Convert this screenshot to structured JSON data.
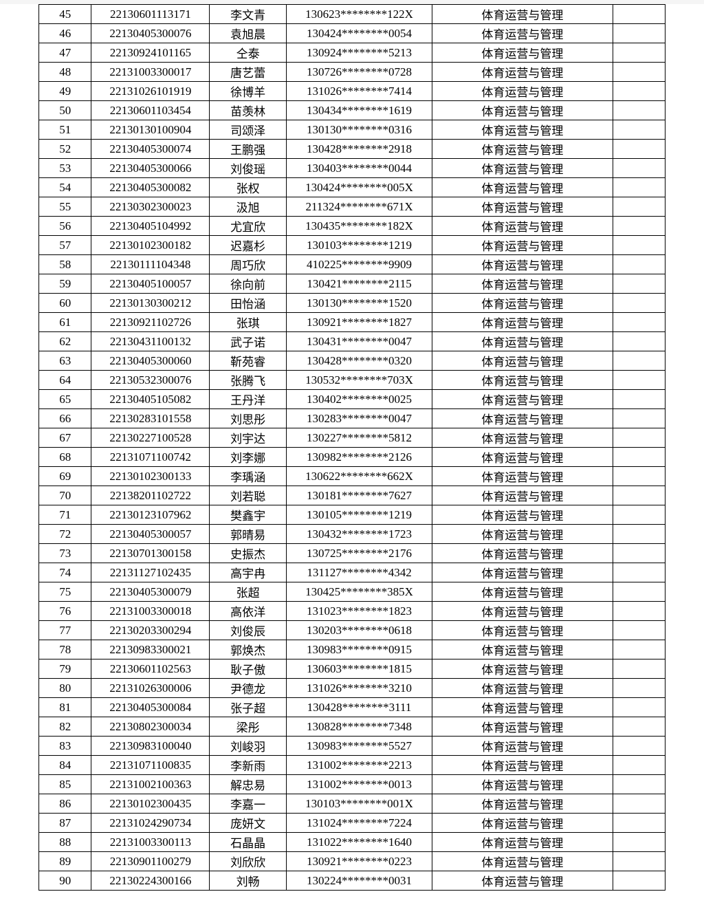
{
  "table": {
    "columns": [
      {
        "class": "col1"
      },
      {
        "class": "col2"
      },
      {
        "class": "col3"
      },
      {
        "class": "col4"
      },
      {
        "class": "col5"
      },
      {
        "class": "col6"
      }
    ],
    "rows": [
      [
        "45",
        "22130601113171",
        "李文青",
        "130623********122X",
        "体育运营与管理",
        ""
      ],
      [
        "46",
        "22130405300076",
        "袁旭晨",
        "130424********0054",
        "体育运营与管理",
        ""
      ],
      [
        "47",
        "22130924101165",
        "仝泰",
        "130924********5213",
        "体育运营与管理",
        ""
      ],
      [
        "48",
        "22131003300017",
        "唐艺蕾",
        "130726********0728",
        "体育运营与管理",
        ""
      ],
      [
        "49",
        "22131026101919",
        "徐博羊",
        "131026********7414",
        "体育运营与管理",
        ""
      ],
      [
        "50",
        "22130601103454",
        "苗羡林",
        "130434********1619",
        "体育运营与管理",
        ""
      ],
      [
        "51",
        "22130130100904",
        "司颂泽",
        "130130********0316",
        "体育运营与管理",
        ""
      ],
      [
        "52",
        "22130405300074",
        "王鹏强",
        "130428********2918",
        "体育运营与管理",
        ""
      ],
      [
        "53",
        "22130405300066",
        "刘俊瑶",
        "130403********0044",
        "体育运营与管理",
        ""
      ],
      [
        "54",
        "22130405300082",
        "张权",
        "130424********005X",
        "体育运营与管理",
        ""
      ],
      [
        "55",
        "22130302300023",
        "汲旭",
        "211324********671X",
        "体育运营与管理",
        ""
      ],
      [
        "56",
        "22130405104992",
        "尤宜欣",
        "130435********182X",
        "体育运营与管理",
        ""
      ],
      [
        "57",
        "22130102300182",
        "迟嘉杉",
        "130103********1219",
        "体育运营与管理",
        ""
      ],
      [
        "58",
        "22130111104348",
        "周巧欣",
        "410225********9909",
        "体育运营与管理",
        ""
      ],
      [
        "59",
        "22130405100057",
        "徐向前",
        "130421********2115",
        "体育运营与管理",
        ""
      ],
      [
        "60",
        "22130130300212",
        "田怡涵",
        "130130********1520",
        "体育运营与管理",
        ""
      ],
      [
        "61",
        "22130921102726",
        "张琪",
        "130921********1827",
        "体育运营与管理",
        ""
      ],
      [
        "62",
        "22130431100132",
        "武子诺",
        "130431********0047",
        "体育运营与管理",
        ""
      ],
      [
        "63",
        "22130405300060",
        "靳苑睿",
        "130428********0320",
        "体育运营与管理",
        ""
      ],
      [
        "64",
        "22130532300076",
        "张腾飞",
        "130532********703X",
        "体育运营与管理",
        ""
      ],
      [
        "65",
        "22130405105082",
        "王丹洋",
        "130402********0025",
        "体育运营与管理",
        ""
      ],
      [
        "66",
        "22130283101558",
        "刘思彤",
        "130283********0047",
        "体育运营与管理",
        ""
      ],
      [
        "67",
        "22130227100528",
        "刘宇达",
        "130227********5812",
        "体育运营与管理",
        ""
      ],
      [
        "68",
        "22131071100742",
        "刘李娜",
        "130982********2126",
        "体育运营与管理",
        ""
      ],
      [
        "69",
        "22130102300133",
        "李瑀涵",
        "130622********662X",
        "体育运营与管理",
        ""
      ],
      [
        "70",
        "22138201102722",
        "刘若聪",
        "130181********7627",
        "体育运营与管理",
        ""
      ],
      [
        "71",
        "22130123107962",
        "樊鑫宇",
        "130105********1219",
        "体育运营与管理",
        ""
      ],
      [
        "72",
        "22130405300057",
        "郭晴易",
        "130432********1723",
        "体育运营与管理",
        ""
      ],
      [
        "73",
        "22130701300158",
        "史振杰",
        "130725********2176",
        "体育运营与管理",
        ""
      ],
      [
        "74",
        "22131127102435",
        "高宇冉",
        "131127********4342",
        "体育运营与管理",
        ""
      ],
      [
        "75",
        "22130405300079",
        "张超",
        "130425********385X",
        "体育运营与管理",
        ""
      ],
      [
        "76",
        "22131003300018",
        "高依洋",
        "131023********1823",
        "体育运营与管理",
        ""
      ],
      [
        "77",
        "22130203300294",
        "刘俊辰",
        "130203********0618",
        "体育运营与管理",
        ""
      ],
      [
        "78",
        "22130983300021",
        "郭焕杰",
        "130983********0915",
        "体育运营与管理",
        ""
      ],
      [
        "79",
        "22130601102563",
        "耿子傲",
        "130603********1815",
        "体育运营与管理",
        ""
      ],
      [
        "80",
        "22131026300006",
        "尹德龙",
        "131026********3210",
        "体育运营与管理",
        ""
      ],
      [
        "81",
        "22130405300084",
        "张子超",
        "130428********3111",
        "体育运营与管理",
        ""
      ],
      [
        "82",
        "22130802300034",
        "梁彤",
        "130828********7348",
        "体育运营与管理",
        ""
      ],
      [
        "83",
        "22130983100040",
        "刘峻羽",
        "130983********5527",
        "体育运营与管理",
        ""
      ],
      [
        "84",
        "22131071100835",
        "李新雨",
        "131002********2213",
        "体育运营与管理",
        ""
      ],
      [
        "85",
        "22131002100363",
        "解忠易",
        "131002********0013",
        "体育运营与管理",
        ""
      ],
      [
        "86",
        "22130102300435",
        "李嘉一",
        "130103********001X",
        "体育运营与管理",
        ""
      ],
      [
        "87",
        "22131024290734",
        "庞妍文",
        "131024********7224",
        "体育运营与管理",
        ""
      ],
      [
        "88",
        "22131003300113",
        "石晶晶",
        "131022********1640",
        "体育运营与管理",
        ""
      ],
      [
        "89",
        "22130901100279",
        "刘欣欣",
        "130921********0223",
        "体育运营与管理",
        ""
      ],
      [
        "90",
        "22130224300166",
        "刘畅",
        "130224********0031",
        "体育运营与管理",
        ""
      ]
    ]
  }
}
